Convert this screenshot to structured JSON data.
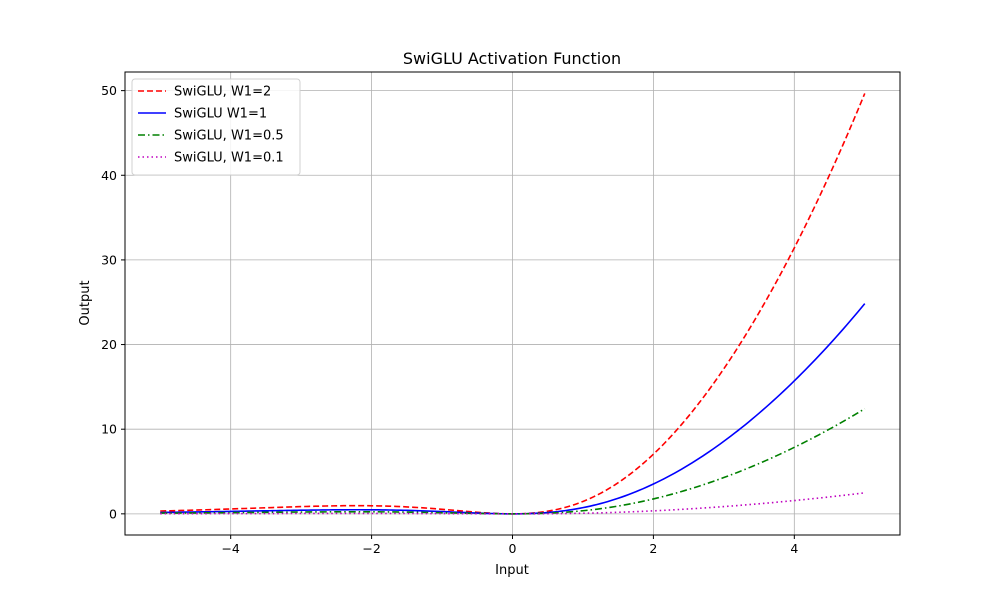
{
  "chart_data": {
    "type": "line",
    "title": "SwiGLU Activation Function",
    "xlabel": "Input",
    "ylabel": "Output",
    "xlim": [
      -5.5,
      5.5
    ],
    "ylim": [
      -2.5,
      52.2
    ],
    "xticks": [
      -4,
      -2,
      0,
      2,
      4
    ],
    "xtick_labels": [
      "−4",
      "−2",
      "0",
      "2",
      "4"
    ],
    "yticks": [
      0,
      10,
      20,
      30,
      40,
      50
    ],
    "ytick_labels": [
      "0",
      "10",
      "20",
      "30",
      "40",
      "50"
    ],
    "grid": true,
    "legend_position": "top-left",
    "x_range": [
      -5,
      5
    ],
    "series": [
      {
        "name": "SwiGLU, W1=2",
        "w1": 2,
        "color": "#ff0000",
        "style": "dashed"
      },
      {
        "name": "SwiGLU W1=1",
        "w1": 1,
        "color": "#0000ff",
        "style": "solid"
      },
      {
        "name": "SwiGLU, W1=0.5",
        "w1": 0.5,
        "color": "#008000",
        "style": "dashdot"
      },
      {
        "name": "SwiGLU, W1=0.1",
        "w1": 0.1,
        "color": "#bf00bf",
        "style": "dotted"
      }
    ]
  }
}
